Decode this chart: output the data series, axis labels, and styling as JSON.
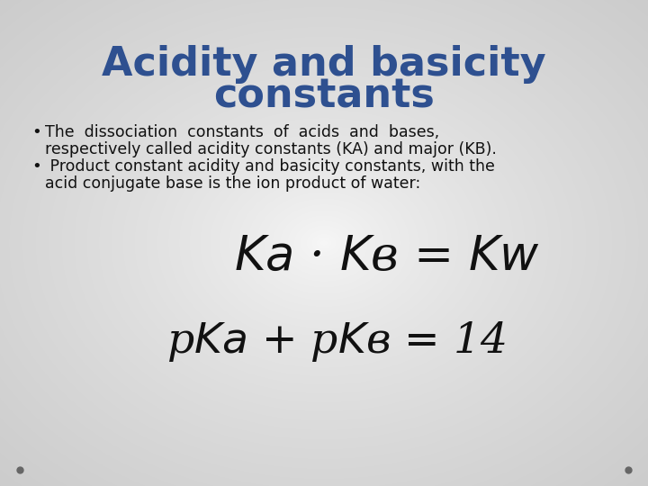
{
  "title_line1": "Acidity and basicity",
  "title_line2": "constants",
  "title_color": "#2E5090",
  "title_fontsize": 32,
  "bullet1_line1": "The  dissociation  constants  of  acids  and  bases,",
  "bullet1_line2": "respectively called acidity constants (KA) and major (KB).",
  "bullet2_line1": " Product constant acidity and basicity constants, with the",
  "bullet2_line2": "acid conjugate base is the ion product of water:",
  "bullet_fontsize": 12.5,
  "text_color": "#111111",
  "dot_color": "#666666",
  "bg_light": "#f8f8f8",
  "bg_dark": "#b8b8c8"
}
